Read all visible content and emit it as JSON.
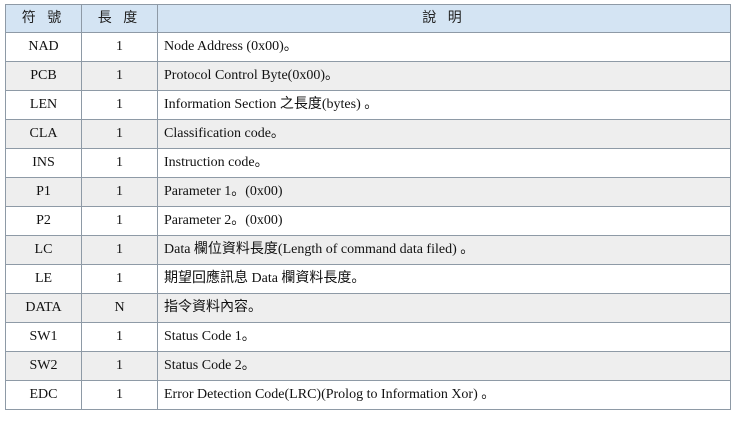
{
  "header": {
    "col_code": "符 號",
    "col_length": "長 度",
    "col_desc": "說 明"
  },
  "rows": [
    {
      "code": "NAD",
      "length": "1",
      "desc": "Node Address (0x00)。"
    },
    {
      "code": "PCB",
      "length": "1",
      "desc": "Protocol Control Byte(0x00)。"
    },
    {
      "code": "LEN",
      "length": "1",
      "desc": "Information Section 之長度(bytes) 。"
    },
    {
      "code": "CLA",
      "length": "1",
      "desc": "Classification code。"
    },
    {
      "code": "INS",
      "length": "1",
      "desc": "Instruction code。"
    },
    {
      "code": "P1",
      "length": "1",
      "desc": "Parameter 1。(0x00)"
    },
    {
      "code": "P2",
      "length": "1",
      "desc": "Parameter 2。(0x00)"
    },
    {
      "code": "LC",
      "length": "1",
      "desc": "Data 欄位資料長度(Length of command data filed) 。"
    },
    {
      "code": "LE",
      "length": "1",
      "desc": "期望回應訊息 Data 欄資料長度。"
    },
    {
      "code": "DATA",
      "length": "N",
      "desc": "指令資料內容。"
    },
    {
      "code": "SW1",
      "length": "1",
      "desc": "Status Code 1。"
    },
    {
      "code": "SW2",
      "length": "1",
      "desc": "Status Code 2。"
    },
    {
      "code": "EDC",
      "length": "1",
      "desc": "Error Detection Code(LRC)(Prolog to Information Xor) 。"
    }
  ]
}
